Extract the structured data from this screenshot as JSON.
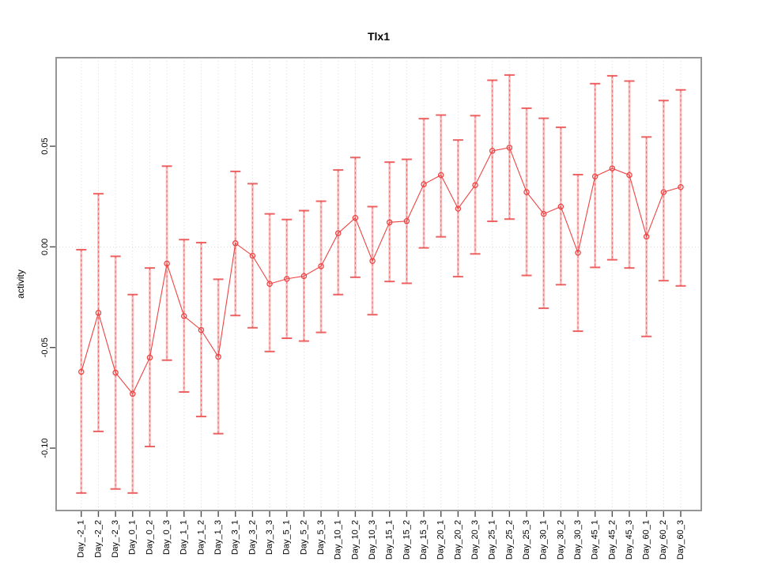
{
  "title": "Tlx1",
  "colors": {
    "series_red": "#ee4444",
    "errorbar_pink": "#f58e8e",
    "cap_red": "#ec5252",
    "gridline": "#d9d9d9",
    "zero_line": "#d4d4d4",
    "frame": "#969696",
    "tick": "#4d4d4d",
    "text": "#000000"
  },
  "chart_data": {
    "type": "line",
    "title": "Tlx1",
    "xlabel": "",
    "ylabel": "activity",
    "legend_position": "none",
    "marker": "open-circle",
    "grid": "vertical-dotted-per-category, dotted-zero-line",
    "error_bars": true,
    "ylim": [
      -0.131,
      0.094
    ],
    "yticks": [
      -0.1,
      -0.05,
      0.0,
      0.05
    ],
    "ytick_labels": [
      "-0.10",
      "-0.05",
      "0.00",
      "0.05"
    ],
    "categories": [
      "Day_-2_1",
      "Day_-2_2",
      "Day_-2_3",
      "Day_0_1",
      "Day_0_2",
      "Day_0_3",
      "Day_1_1",
      "Day_1_2",
      "Day_1_3",
      "Day_3_1",
      "Day_3_2",
      "Day_3_3",
      "Day_5_1",
      "Day_5_2",
      "Day_5_3",
      "Day_10_1",
      "Day_10_2",
      "Day_10_3",
      "Day_15_1",
      "Day_15_2",
      "Day_15_3",
      "Day_20_1",
      "Day_20_2",
      "Day_20_3",
      "Day_25_1",
      "Day_25_2",
      "Day_25_3",
      "Day_30_1",
      "Day_30_2",
      "Day_30_3",
      "Day_45_1",
      "Day_45_2",
      "Day_45_3",
      "Day_60_1",
      "Day_60_2",
      "Day_60_3"
    ],
    "series": [
      {
        "name": "activity",
        "values": [
          -0.0621,
          -0.0328,
          -0.0625,
          -0.073,
          -0.055,
          -0.0083,
          -0.0344,
          -0.0413,
          -0.0546,
          0.0018,
          -0.0044,
          -0.0184,
          -0.0159,
          -0.0145,
          -0.0096,
          0.0068,
          0.0144,
          -0.007,
          0.0122,
          0.0128,
          0.0311,
          0.0357,
          0.019,
          0.0307,
          0.0477,
          0.0493,
          0.0272,
          0.0164,
          0.02,
          -0.0029,
          0.035,
          0.039,
          0.0357,
          0.0051,
          0.0272,
          0.0297
        ],
        "upper": [
          -0.0014,
          0.0264,
          -0.0047,
          -0.0237,
          -0.0105,
          0.0401,
          0.0036,
          0.0021,
          -0.0161,
          0.0375,
          0.0314,
          0.0164,
          0.0136,
          0.018,
          0.0227,
          0.0382,
          0.0444,
          0.02,
          0.0421,
          0.0435,
          0.0637,
          0.0655,
          0.0531,
          0.0652,
          0.0828,
          0.0854,
          0.0689,
          0.0639,
          0.0594,
          0.0359,
          0.0811,
          0.085,
          0.0824,
          0.0546,
          0.0727,
          0.078
        ],
        "lower": [
          -0.1223,
          -0.0917,
          -0.1203,
          -0.1223,
          -0.0992,
          -0.0563,
          -0.0721,
          -0.0843,
          -0.0928,
          -0.0341,
          -0.0402,
          -0.052,
          -0.0454,
          -0.0468,
          -0.0425,
          -0.0237,
          -0.0151,
          -0.0337,
          -0.0172,
          -0.0181,
          -0.0005,
          0.005,
          -0.0148,
          -0.0035,
          0.0127,
          0.0138,
          -0.0142,
          -0.0305,
          -0.0188,
          -0.0419,
          -0.0102,
          -0.0064,
          -0.0105,
          -0.0445,
          -0.0168,
          -0.0194
        ]
      }
    ]
  }
}
